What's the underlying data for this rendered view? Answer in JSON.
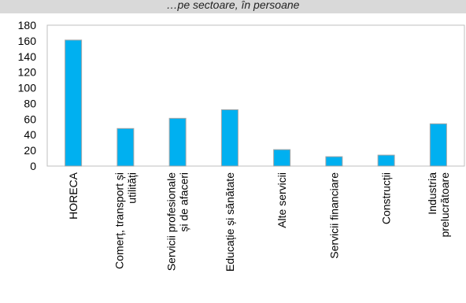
{
  "title": "…pe sectoare, în persoane",
  "chart_data": {
    "type": "bar",
    "categories": [
      [
        "HORECA"
      ],
      [
        "Comerț, transport și",
        "utilități"
      ],
      [
        "Servicii profesionale",
        "și de afaceri"
      ],
      [
        "Educație și sănătate"
      ],
      [
        "Alte servicii"
      ],
      [
        "Servicii financiare"
      ],
      [
        "Construcții"
      ],
      [
        "Industria",
        "prelucrătoare"
      ]
    ],
    "values": [
      161,
      48,
      61,
      72,
      21,
      12,
      14,
      54
    ],
    "ylim": [
      0,
      180
    ],
    "yticks": [
      0,
      20,
      40,
      60,
      80,
      100,
      120,
      140,
      160,
      180
    ],
    "bar_color": "#00b0f0",
    "bar_edge_color": "#a6a6a6",
    "grid": false
  }
}
